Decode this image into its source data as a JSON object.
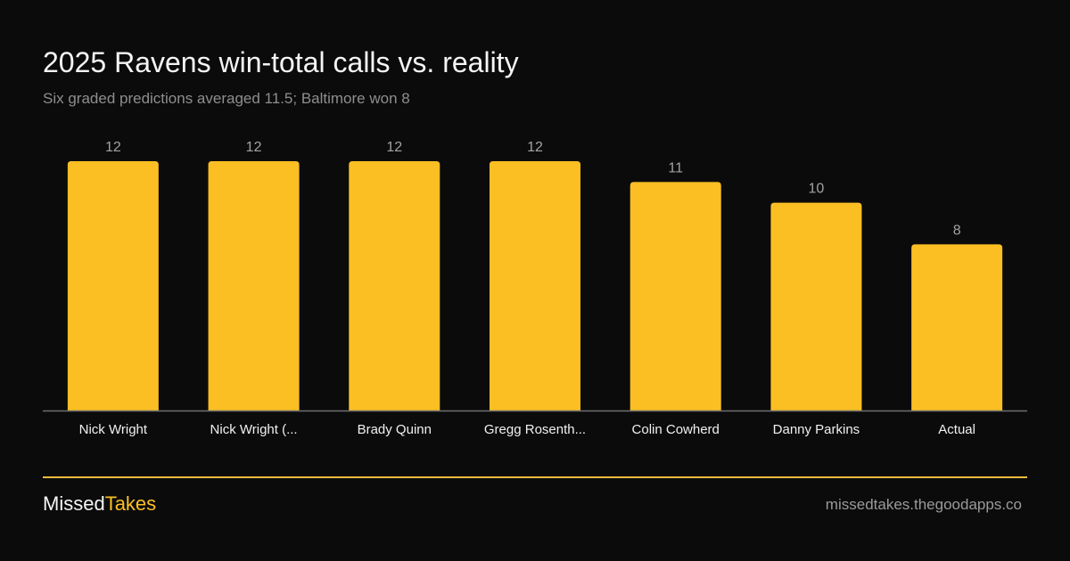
{
  "header": {
    "title": "2025 Ravens win-total calls vs. reality",
    "subtitle": "Six graded predictions averaged 11.5; Baltimore won 8"
  },
  "chart_data": {
    "type": "bar",
    "categories": [
      "Nick Wright",
      "Nick Wright (...",
      "Brady Quinn",
      "Gregg Rosenth...",
      "Colin Cowherd",
      "Danny Parkins",
      "Actual"
    ],
    "values": [
      12,
      12,
      12,
      12,
      11,
      10,
      8
    ],
    "data_labels": [
      "12",
      "12",
      "12",
      "12",
      "11",
      "10",
      "8"
    ],
    "ylim": [
      0,
      12
    ],
    "grid": false,
    "bar_color": "#fbbf24",
    "baseline_color": "#6e6e6e"
  },
  "footer": {
    "brand_part1": "Missed",
    "brand_part2": "Takes",
    "site": "missedtakes.thegoodapps.co",
    "rule_color": "#f2bc3c"
  }
}
